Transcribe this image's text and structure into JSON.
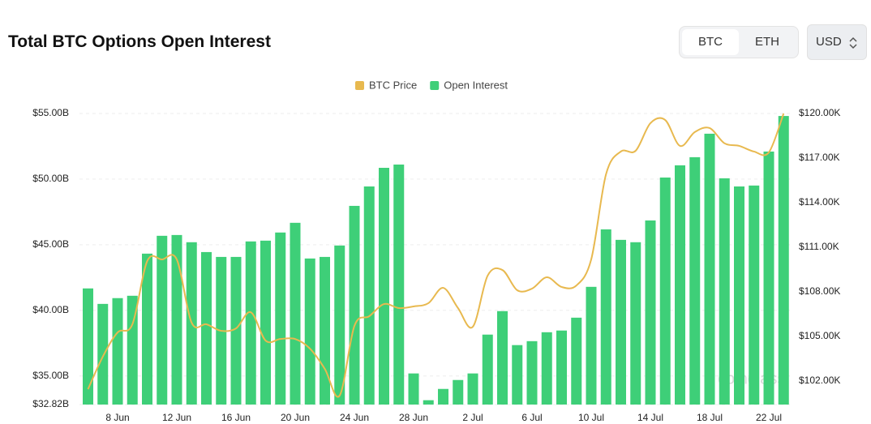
{
  "header": {
    "title": "Total BTC Options Open Interest",
    "buttons": [
      "BTC",
      "ETH"
    ],
    "currency": "USD"
  },
  "chart_data": {
    "type": "bar-line",
    "categories": [
      null,
      null,
      "8 Jun",
      null,
      null,
      null,
      "12 Jun",
      null,
      null,
      null,
      "16 Jun",
      null,
      null,
      null,
      "20 Jun",
      null,
      null,
      null,
      "24 Jun",
      null,
      null,
      null,
      "28 Jun",
      null,
      null,
      null,
      "2 Jul",
      null,
      null,
      null,
      "6 Jul",
      null,
      null,
      null,
      "10 Jul",
      null,
      null,
      null,
      "14 Jul",
      null,
      null,
      null,
      "18 Jul",
      null,
      null,
      null,
      "22 Jul",
      null
    ],
    "series": [
      {
        "name": "BTC Price",
        "color": "#e8b94f",
        "axis": "y2",
        "kind": "line",
        "values": [
          101.45,
          103.64,
          105.27,
          105.82,
          110.07,
          110.18,
          110.18,
          105.93,
          105.82,
          105.38,
          105.54,
          106.63,
          104.72,
          104.83,
          104.83,
          104.18,
          102.82,
          101.02,
          105.71,
          106.36,
          107.18,
          106.91,
          107.02,
          107.24,
          108.27,
          106.91,
          105.65,
          109.09,
          109.47,
          108.11,
          108.22,
          108.98,
          108.33,
          108.43,
          110.18,
          115.91,
          117.44,
          117.49,
          119.35,
          119.56,
          117.82,
          118.75,
          119.02,
          118.0,
          117.82,
          117.44,
          117.38,
          120.0
        ]
      },
      {
        "name": "Open Interest",
        "color": "#3ecf78",
        "kind": "bar",
        "values": [
          41.67,
          40.49,
          40.93,
          41.11,
          44.32,
          45.68,
          45.74,
          45.19,
          44.44,
          44.07,
          44.07,
          45.25,
          45.31,
          45.93,
          46.67,
          43.95,
          44.07,
          44.94,
          47.96,
          49.44,
          50.86,
          51.11,
          35.19,
          33.15,
          34.01,
          34.69,
          35.19,
          38.15,
          39.94,
          37.35,
          37.65,
          38.33,
          38.46,
          39.44,
          41.79,
          46.17,
          45.37,
          45.19,
          46.85,
          50.12,
          51.05,
          51.67,
          53.46,
          50.06,
          49.44,
          49.51,
          52.1,
          54.81
        ]
      }
    ],
    "ylim": [
      32.82,
      55
    ],
    "yticks": [
      {
        "value": 32.82,
        "label": "$32.82B"
      },
      {
        "value": 35,
        "label": "$35.00B"
      },
      {
        "value": 40,
        "label": "$40.00B"
      },
      {
        "value": 45,
        "label": "$45.00B"
      },
      {
        "value": 50,
        "label": "$50.00B"
      },
      {
        "value": 55,
        "label": "$55.00B"
      }
    ],
    "y2lim": [
      100.42,
      120
    ],
    "y2ticks": [
      {
        "value": 102,
        "label": "$102.00K"
      },
      {
        "value": 105,
        "label": "$105.00K"
      },
      {
        "value": 108,
        "label": "$108.00K"
      },
      {
        "value": 111,
        "label": "$111.00K"
      },
      {
        "value": 114,
        "label": "$114.00K"
      },
      {
        "value": 117,
        "label": "$117.00K"
      },
      {
        "value": 120,
        "label": "$120.00K"
      }
    ],
    "grid": true,
    "legend": "top",
    "watermark": "coinglass"
  }
}
